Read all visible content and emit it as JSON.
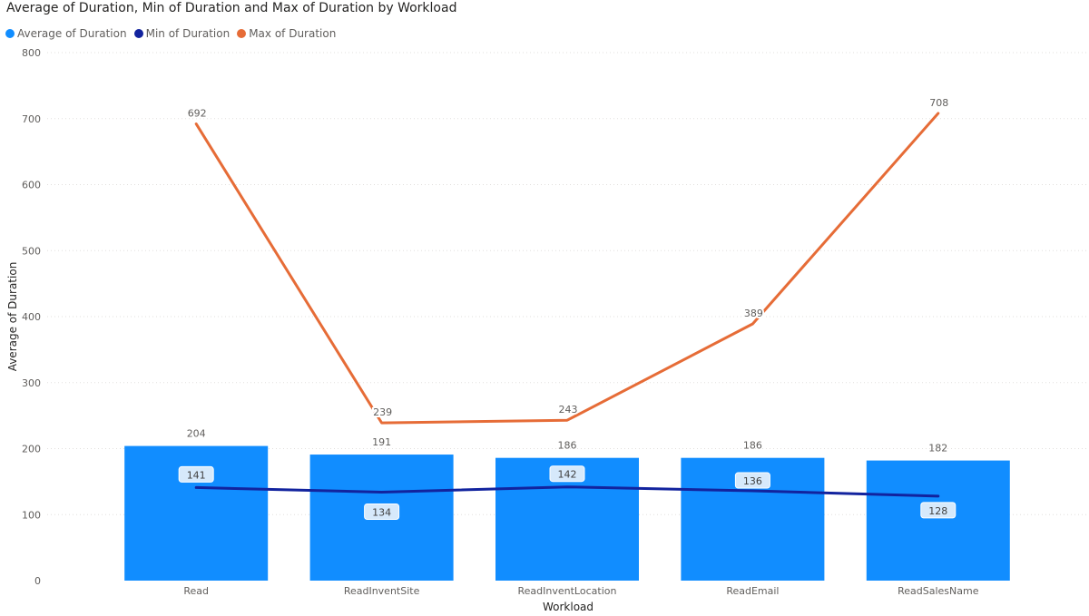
{
  "chart_data": {
    "type": "bar",
    "title": "Average of Duration, Min of Duration and Max of Duration by Workload",
    "xlabel": "Workload",
    "ylabel": "Average of Duration",
    "categories": [
      "Read",
      "ReadInventSite",
      "ReadInventLocation",
      "ReadEmail",
      "ReadSalesName"
    ],
    "ylim": [
      0,
      800
    ],
    "yticks": [
      0,
      100,
      200,
      300,
      400,
      500,
      600,
      700,
      800
    ],
    "grid": true,
    "legend_position": "top-left",
    "series": [
      {
        "name": "Average of  Duration",
        "kind": "bar",
        "color": "#118DFF",
        "values": [
          204,
          191,
          186,
          186,
          182
        ]
      },
      {
        "name": "Min of  Duration",
        "kind": "line",
        "color": "#12239E",
        "values": [
          141,
          134,
          142,
          136,
          128
        ]
      },
      {
        "name": "Max of  Duration",
        "kind": "line",
        "color": "#E66C37",
        "values": [
          692,
          239,
          243,
          389,
          708
        ]
      }
    ]
  }
}
